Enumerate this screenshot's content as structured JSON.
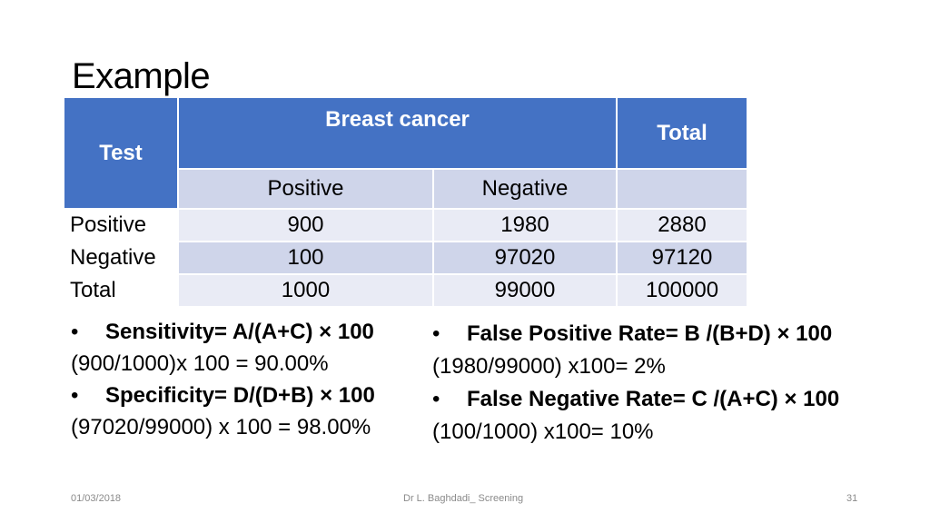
{
  "slide": {
    "title": "Example",
    "table": {
      "test_header": "Test",
      "group_header": "Breast cancer",
      "total_header": "Total",
      "col_positive": "Positive",
      "col_negative": "Negative",
      "rows": [
        {
          "label": "Positive",
          "pos": "900",
          "neg": "1980",
          "total": "2880"
        },
        {
          "label": "Negative",
          "pos": "100",
          "neg": "97020",
          "total": "97120"
        },
        {
          "label": "Total",
          "pos": "1000",
          "neg": "99000",
          "total": "100000"
        }
      ]
    },
    "left": {
      "sens_label": "Sensitivity= A/(A+C) × 100",
      "sens_calc": "(900/1000)x 100 =  90.00%",
      "spec_label": "Specificity= D/(D+B) × 100",
      "spec_calc": "(97020/99000) x 100 = 98.00%"
    },
    "right": {
      "fpr_label": "False Positive Rate= B /(B+D) × 100",
      "fpr_calc": "(1980/99000) x100= 2%",
      "fnr_label": "False Negative Rate= C /(A+C) × 100",
      "fnr_calc": "(100/1000) x100= 10%"
    },
    "bullet_glyph": "•",
    "footer": {
      "date": "01/03/2018",
      "author": "Dr L. Baghdadi_ Screening",
      "page": "31"
    }
  }
}
